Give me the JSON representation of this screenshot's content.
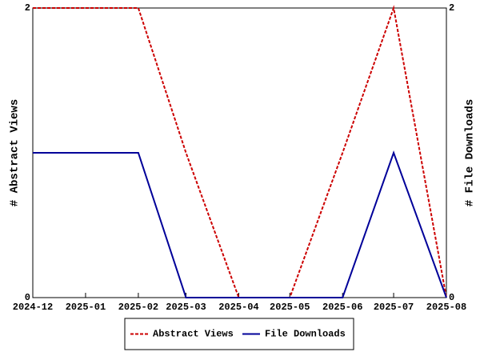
{
  "chart_data": {
    "type": "line",
    "x": [
      "2024-12",
      "2025-01",
      "2025-02",
      "2025-03",
      "2025-04",
      "2025-05",
      "2025-06",
      "2025-07",
      "2025-08"
    ],
    "xlim": [
      "2024-12",
      "2025-08"
    ],
    "xticks": [
      "2024-12",
      "2025-01",
      "2025-02",
      "2025-03",
      "2025-04",
      "2025-05",
      "2025-06",
      "2025-07",
      "2025-08"
    ],
    "ylabel": "# Abstract Views",
    "y2label": "# File Downloads",
    "ylim": [
      0,
      2
    ],
    "yticks": [
      0,
      2
    ],
    "y2lim": [
      0,
      2
    ],
    "y2ticks": [
      0,
      2
    ],
    "series": [
      {
        "name": "Abstract Views",
        "color": "#cc0000",
        "dashed": true,
        "values": [
          2,
          2,
          2,
          1,
          0,
          0,
          1,
          2,
          0
        ]
      },
      {
        "name": "File Downloads",
        "color": "#000099",
        "dashed": false,
        "axis": "y2",
        "values": [
          1,
          1,
          1,
          0,
          0,
          0,
          0,
          1,
          0
        ]
      }
    ]
  }
}
